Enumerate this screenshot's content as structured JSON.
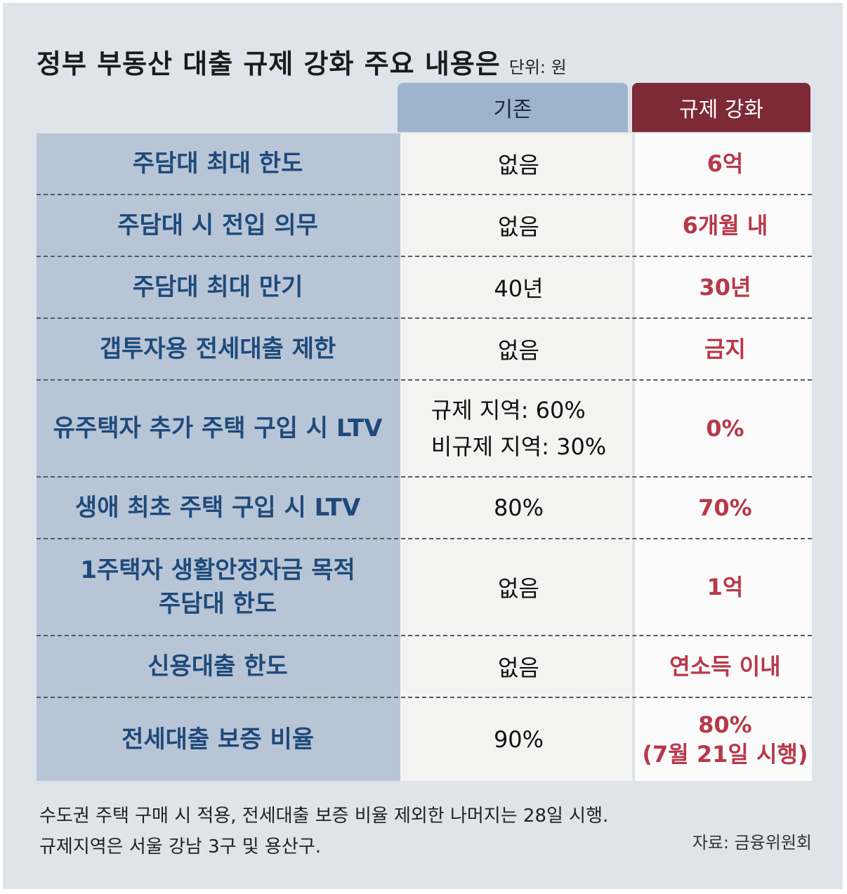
{
  "title": "정부 부동산 대출 규제 강화 주요 내용은",
  "unit": "단위: 원",
  "headers": {
    "before": "기존",
    "after": "규제 강화"
  },
  "rows": [
    {
      "label": "주담대 최대 한도",
      "before": "없음",
      "after": "6억"
    },
    {
      "label": "주담대 시 전입 의무",
      "before": "없음",
      "after": "6개월 내"
    },
    {
      "label": "주담대 최대 만기",
      "before": "40년",
      "after": "30년"
    },
    {
      "label": "갭투자용 전세대출 제한",
      "before": "없음",
      "after": "금지"
    },
    {
      "label": "유주택자 추가 주택 구입 시 LTV",
      "before_lines": [
        "규제 지역: 60%",
        "비규제 지역: 30%"
      ],
      "after": "0%"
    },
    {
      "label": "생애 최초 주택 구입 시 LTV",
      "before": "80%",
      "after": "70%"
    },
    {
      "label_lines": [
        "1주택자 생활안정자금 목적",
        "주담대 한도"
      ],
      "before": "없음",
      "after": "1억"
    },
    {
      "label": "신용대출 한도",
      "before": "없음",
      "after": "연소득 이내"
    },
    {
      "label": "전세대출 보증 비율",
      "before": "90%",
      "after_lines": [
        "80%",
        "(7월 21일 시행)"
      ]
    }
  ],
  "footnote": [
    "수도권 주택 구매 시 적용, 전세대출 보증 비율 제외한 나머지는 28일 시행.",
    "규제지역은 서울 강남 3구 및 용산구."
  ],
  "source": "자료: 금융위원회"
}
